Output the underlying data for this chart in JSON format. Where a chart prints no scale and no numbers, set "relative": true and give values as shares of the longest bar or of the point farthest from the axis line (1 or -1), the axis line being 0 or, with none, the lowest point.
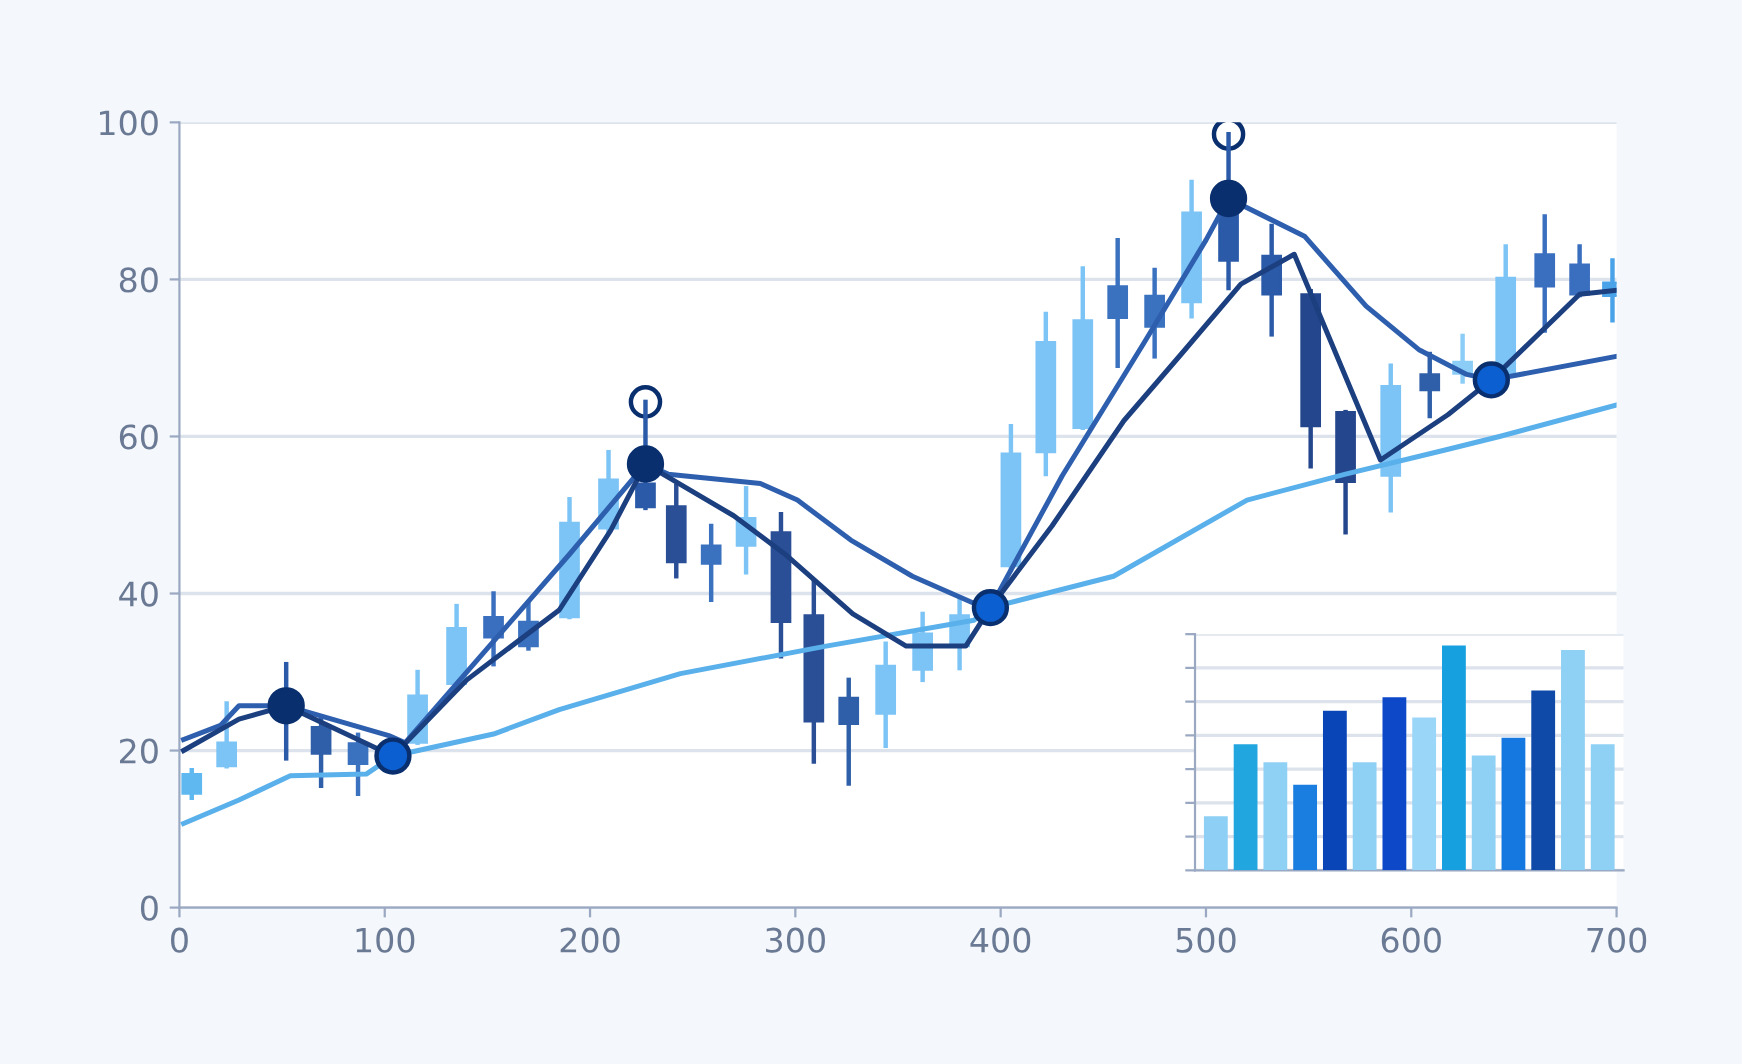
{
  "chart_data": [
    {
      "type": "candlestick",
      "xlim": [
        0,
        700
      ],
      "ylim": [
        0,
        100
      ],
      "xticks": [
        0,
        100,
        200,
        300,
        400,
        500,
        600,
        700
      ],
      "yticks": [
        0,
        20,
        40,
        60,
        80,
        100
      ],
      "grid": "y",
      "legend": false,
      "x": [
        6,
        23,
        52,
        69,
        87,
        116,
        135,
        153,
        170,
        190,
        209,
        227,
        242,
        259,
        276,
        293,
        309,
        326,
        344,
        362,
        380,
        405,
        422,
        440,
        457,
        475,
        493,
        511,
        532,
        551,
        568,
        590,
        609,
        625,
        646,
        665,
        682,
        698
      ],
      "ohlc": [
        [
          14.5,
          17.5,
          14,
          17
        ],
        [
          18,
          26,
          18,
          21
        ],
        [
          25,
          31,
          19,
          26
        ],
        [
          23,
          24,
          15.5,
          19.6
        ],
        [
          20.9,
          22,
          14.5,
          18.3
        ],
        [
          21,
          30,
          21,
          27
        ],
        [
          28.5,
          38.4,
          28,
          35.6
        ],
        [
          37,
          40,
          31,
          34.4
        ],
        [
          36.4,
          38.7,
          33,
          33.3
        ],
        [
          37,
          52,
          37,
          49
        ],
        [
          48.3,
          58,
          48,
          54.5
        ],
        [
          54,
          64.4,
          50.9,
          51
        ],
        [
          51.1,
          53.7,
          42.2,
          44
        ],
        [
          46.1,
          48.6,
          39.2,
          43.8
        ],
        [
          46.1,
          53.4,
          42.7,
          49.6
        ],
        [
          47.8,
          50.1,
          32,
          36.4
        ],
        [
          37.2,
          41.5,
          18.6,
          23.7
        ],
        [
          26.7,
          29,
          15.8,
          23.4
        ],
        [
          24.7,
          33.6,
          20.6,
          30.8
        ],
        [
          30.3,
          37.4,
          29,
          34.9
        ],
        [
          33.3,
          39.2,
          30.5,
          37.2
        ],
        [
          43.5,
          61.3,
          43,
          57.8
        ],
        [
          58,
          75.6,
          55.2,
          72
        ],
        [
          61.1,
          81.4,
          61.1,
          74.8
        ],
        [
          79.1,
          85,
          69,
          75.1
        ],
        [
          77.9,
          81.2,
          70.2,
          74
        ],
        [
          77.1,
          92.4,
          75.3,
          88.5
        ],
        [
          88.8,
          98.5,
          78.9,
          82.4
        ],
        [
          83,
          86.8,
          73,
          78.1
        ],
        [
          78.1,
          78.5,
          56.2,
          61.3
        ],
        [
          63.1,
          63.1,
          47.8,
          54.2
        ],
        [
          55,
          69,
          50.6,
          66.4
        ],
        [
          67.9,
          70.5,
          62.6,
          65.9
        ],
        [
          68,
          72.8,
          67,
          69.5
        ],
        [
          67.9,
          84.2,
          67.9,
          80.2
        ],
        [
          83.2,
          88,
          73.5,
          79.1
        ],
        [
          81.9,
          84.2,
          78,
          78.1
        ],
        [
          79.6,
          82.4,
          74.8,
          77.9
        ]
      ],
      "colors": [
        "#5fb8f0",
        "#7cc4f5",
        "#2a5aa8",
        "#2f5fa8",
        "#3a72c0",
        "#7cc4f5",
        "#7cc4f5",
        "#3a6fbf",
        "#3a72c0",
        "#7cc4f5",
        "#7cc4f5",
        "#2a5aa8",
        "#2a4f96",
        "#3a72c0",
        "#7cc4f5",
        "#2a4f96",
        "#2a4f96",
        "#2f5fa8",
        "#7cc4f5",
        "#7cc4f5",
        "#7cc4f5",
        "#7cc4f5",
        "#7cc4f5",
        "#7cc4f5",
        "#3a72c0",
        "#3a72c0",
        "#7cc4f5",
        "#2a5aa8",
        "#2a5aa8",
        "#24468c",
        "#24468c",
        "#7cc4f5",
        "#2f5fa8",
        "#8ccdf7",
        "#7cc4f5",
        "#3a6fbf",
        "#3a6fbf",
        "#4aa3e8"
      ],
      "series": [
        {
          "type": "line",
          "color": "#5ab0ea",
          "x": [
            2,
            29,
            54,
            91,
            104,
            153,
            185,
            244,
            315,
            387,
            395,
            455,
            520,
            568,
            617,
            643,
            700
          ],
          "values": [
            10.7,
            13.7,
            16.8,
            17,
            19.3,
            22.1,
            25.2,
            29.8,
            33.3,
            36.6,
            38.2,
            42.2,
            51.9,
            55.2,
            58.3,
            60,
            64
          ]
        },
        {
          "type": "line",
          "color": "#2e5fae",
          "x": [
            2,
            20,
            29,
            52,
            102,
            110,
            150,
            190,
            227,
            238,
            283,
            301,
            327,
            357,
            390,
            395,
            430,
            470,
            500,
            511,
            548,
            578,
            604,
            627,
            639,
            700
          ],
          "values": [
            21.4,
            23.2,
            25.7,
            25.7,
            21.9,
            21,
            33,
            45,
            56.5,
            55.2,
            54,
            51.9,
            46.8,
            42.2,
            38.4,
            38.2,
            55,
            72,
            85,
            90.3,
            85.5,
            76.6,
            71,
            67.9,
            67.2,
            70.2
          ]
        },
        {
          "type": "line",
          "color": "#1c3f80",
          "x": [
            2,
            29,
            52,
            104,
            140,
            185,
            210,
            227,
            270,
            295,
            328,
            354,
            383,
            395,
            425,
            460,
            488,
            517,
            543,
            585,
            618,
            639,
            682,
            700
          ],
          "values": [
            20,
            24,
            25.7,
            19.3,
            29,
            37.9,
            48,
            56.5,
            49.9,
            45,
            37.4,
            33.3,
            33.3,
            38.2,
            48.6,
            62,
            70.5,
            79.4,
            83.2,
            57,
            62.8,
            67.2,
            78.1,
            78.6
          ]
        },
        {
          "type": "scatter",
          "marker": "circle",
          "color": "#0a2f6e",
          "x": [
            52,
            227,
            511
          ],
          "values": [
            25.7,
            56.5,
            90.3
          ]
        },
        {
          "type": "scatter",
          "marker": "circle",
          "color": "#0b5fd0",
          "x": [
            104,
            395,
            639
          ],
          "values": [
            19.3,
            38.2,
            67.2
          ]
        },
        {
          "type": "scatter",
          "marker": "circle",
          "color": "#ffffff",
          "x": [
            227,
            511
          ],
          "values": [
            64.4,
            98.5
          ]
        }
      ]
    },
    {
      "type": "bar",
      "relative": true,
      "grid": "y",
      "categories": [
        null,
        null,
        null,
        null,
        null,
        null,
        null,
        null,
        null,
        null,
        null,
        null,
        null,
        null
      ],
      "values": [
        0.24,
        0.56,
        0.48,
        0.38,
        0.71,
        0.48,
        0.77,
        0.68,
        1,
        0.51,
        0.59,
        0.8,
        0.98,
        0.56
      ],
      "colors": [
        "#8ecff5",
        "#22a6e0",
        "#8fd0f5",
        "#1a7ee0",
        "#0a45b8",
        "#8fd0f5",
        "#0c48c8",
        "#9ad6f7",
        "#16a0e0",
        "#8fd0f5",
        "#1478e0",
        "#0f4aa8",
        "#8fd0f5",
        "#8fd0f5"
      ]
    }
  ]
}
